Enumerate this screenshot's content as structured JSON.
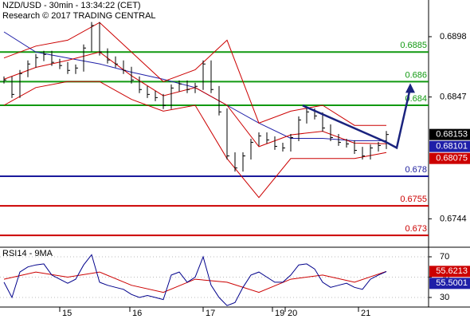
{
  "chart_data": [
    {
      "type": "ohlc",
      "title": "NZD/USD - 30min - 13:34:22 (CET)",
      "subtitle": "Research © 2017 TRADING CENTRAL",
      "x": [
        0,
        1,
        2,
        3,
        4,
        5,
        6,
        7,
        8,
        9,
        10,
        11,
        12,
        13,
        14,
        15,
        16,
        17,
        18,
        19,
        20,
        21,
        22,
        23,
        24,
        25,
        26,
        27,
        28,
        29,
        30,
        31,
        32,
        33,
        34,
        35,
        36,
        37,
        38,
        39,
        40,
        41,
        42,
        43,
        44,
        45,
        46,
        47,
        48
      ],
      "high": [
        0.68644,
        0.68644,
        0.68698,
        0.68779,
        0.68833,
        0.6886,
        0.6886,
        0.68793,
        0.68766,
        0.68745,
        0.68914,
        0.69104,
        0.69104,
        0.68881,
        0.68813,
        0.68779,
        0.68725,
        0.68644,
        0.68563,
        0.68522,
        0.68495,
        0.68576,
        0.6861,
        0.6861,
        0.6859,
        0.68779,
        0.68779,
        0.68563,
        0.68374,
        0.68002,
        0.68002,
        0.68117,
        0.68171,
        0.68171,
        0.68137,
        0.68083,
        0.68157,
        0.68306,
        0.68374,
        0.68374,
        0.6834,
        0.68238,
        0.68157,
        0.68117,
        0.68103,
        0.68049,
        0.68069,
        0.6809,
        0.68183
      ],
      "low": [
        0.68584,
        0.68462,
        0.68462,
        0.68638,
        0.68719,
        0.68773,
        0.68733,
        0.68706,
        0.68665,
        0.68665,
        0.68685,
        0.68854,
        0.68821,
        0.68753,
        0.68719,
        0.68665,
        0.68584,
        0.68503,
        0.68462,
        0.68435,
        0.68368,
        0.68368,
        0.68516,
        0.68503,
        0.68503,
        0.6853,
        0.68503,
        0.68314,
        0.67942,
        0.6784,
        0.6784,
        0.67942,
        0.68057,
        0.68077,
        0.68023,
        0.68009,
        0.68009,
        0.68097,
        0.68246,
        0.6828,
        0.68178,
        0.68097,
        0.68057,
        0.68043,
        0.67989,
        0.67942,
        0.67942,
        0.68009,
        0.6803
      ],
      "close": [
        0.68614,
        0.68492,
        0.68668,
        0.68749,
        0.68803,
        0.6883,
        0.68763,
        0.68736,
        0.68695,
        0.68715,
        0.68884,
        0.69074,
        0.68851,
        0.68783,
        0.68749,
        0.68695,
        0.68614,
        0.68533,
        0.68492,
        0.68465,
        0.68398,
        0.68546,
        0.6858,
        0.68533,
        0.6856,
        0.68749,
        0.68533,
        0.68344,
        0.67972,
        0.6787,
        0.67972,
        0.68087,
        0.68141,
        0.68107,
        0.68053,
        0.68039,
        0.68127,
        0.68276,
        0.68344,
        0.6831,
        0.68208,
        0.68127,
        0.68087,
        0.68073,
        0.68019,
        0.67972,
        0.68039,
        0.6806,
        0.68153
      ],
      "color": "#000000",
      "lines": [
        {
          "color": "#1f1fa8",
          "x": [
            0,
            4,
            8,
            12,
            16,
            20,
            24,
            28,
            32,
            36,
            40,
            44,
            48
          ],
          "values": [
            0.6902,
            0.6885,
            0.688,
            0.6875,
            0.6868,
            0.6862,
            0.6855,
            0.684,
            0.6825,
            0.6812,
            0.6812,
            0.681,
            0.68101
          ]
        },
        {
          "color": "#cc0000",
          "x": [
            0,
            4,
            8,
            12,
            16,
            20,
            24,
            28,
            32,
            36,
            40,
            44,
            48
          ],
          "values": [
            0.688,
            0.689,
            0.6895,
            0.691,
            0.6885,
            0.686,
            0.687,
            0.6895,
            0.6825,
            0.6835,
            0.684,
            0.6823,
            0.6823
          ]
        },
        {
          "color": "#cc0000",
          "x": [
            0,
            4,
            8,
            12,
            16,
            20,
            24,
            28,
            32,
            36,
            40,
            44,
            48
          ],
          "values": [
            0.684,
            0.6855,
            0.686,
            0.686,
            0.6845,
            0.6835,
            0.684,
            0.6795,
            0.6762,
            0.6795,
            0.6795,
            0.6795,
            0.68
          ]
        },
        {
          "color": "#cc0000",
          "x": [
            0,
            4,
            8,
            12,
            16,
            20,
            24,
            28,
            32,
            36,
            40,
            44,
            48
          ],
          "values": [
            0.6862,
            0.6872,
            0.6878,
            0.6885,
            0.6865,
            0.6848,
            0.6855,
            0.684,
            0.6805,
            0.6815,
            0.6818,
            0.6808,
            0.68075
          ]
        }
      ],
      "levels": [
        {
          "value": 0.6885,
          "color": "#119911"
        },
        {
          "value": 0.686,
          "color": "#119911"
        },
        {
          "value": 0.684,
          "color": "#119911"
        },
        {
          "value": 0.678,
          "color": "#1a1a9c"
        },
        {
          "value": 0.6755,
          "color": "#cc0000"
        },
        {
          "value": 0.673,
          "color": "#cc0000"
        }
      ],
      "trend_arrow": {
        "color": "#1a237e",
        "x": [
          37.5,
          48,
          49.3,
          51
        ],
        "values": [
          0.68398,
          0.68087,
          0.6804,
          0.68546
        ]
      },
      "price_boxes": [
        {
          "value": 0.68153,
          "color": "#000000"
        },
        {
          "value": 0.68101,
          "color": "#1f1fa8"
        },
        {
          "value": 0.68075,
          "color": "#cc0000"
        }
      ],
      "xlim": [
        -0.5,
        53.3
      ],
      "ylim": [
        0.672,
        0.6929
      ],
      "yticks": [
        0.6898,
        0.6847,
        0.6744
      ]
    },
    {
      "type": "line",
      "title": "RSI14 - 9MA",
      "x": [
        0,
        1,
        2,
        3,
        4,
        5,
        6,
        7,
        8,
        9,
        10,
        11,
        12,
        13,
        14,
        15,
        16,
        17,
        18,
        19,
        20,
        21,
        22,
        23,
        24,
        25,
        26,
        27,
        28,
        29,
        30,
        31,
        32,
        33,
        34,
        35,
        36,
        37,
        38,
        39,
        40,
        41,
        42,
        43,
        44,
        45,
        46,
        47,
        48
      ],
      "values": [
        45,
        30,
        55,
        60,
        62,
        63,
        52,
        48,
        44,
        48,
        62,
        72,
        45,
        42,
        40,
        38,
        33,
        30,
        32,
        30,
        28,
        52,
        55,
        45,
        50,
        70,
        42,
        30,
        22,
        25,
        40,
        52,
        55,
        50,
        45,
        45,
        52,
        62,
        63,
        58,
        45,
        40,
        42,
        44,
        40,
        38,
        48,
        52,
        55.5001
      ],
      "color": "#00008b",
      "ma": {
        "color": "#cc0000",
        "x": [
          0,
          4,
          8,
          12,
          16,
          20,
          24,
          28,
          32,
          36,
          40,
          44,
          48
        ],
        "values": [
          48,
          55,
          50,
          55,
          42,
          35,
          48,
          45,
          35,
          48,
          52,
          45,
          55.6213
        ]
      },
      "price_boxes": [
        {
          "value": 55.6213,
          "color": "#cc0000"
        },
        {
          "value": 55.5001,
          "color": "#1f1fa8"
        }
      ],
      "xlim": [
        -0.5,
        53.3
      ],
      "ylim": [
        20.6,
        79.4
      ],
      "yticks": [
        30,
        50,
        70
      ],
      "xticks": [
        {
          "value": 7,
          "label": "15"
        },
        {
          "value": 15.8,
          "label": "16"
        },
        {
          "value": 25,
          "label": "17"
        },
        {
          "value": 33.7,
          "label": "19"
        },
        {
          "value": 35.3,
          "label": "20"
        },
        {
          "value": 44.5,
          "label": "21"
        }
      ]
    }
  ]
}
